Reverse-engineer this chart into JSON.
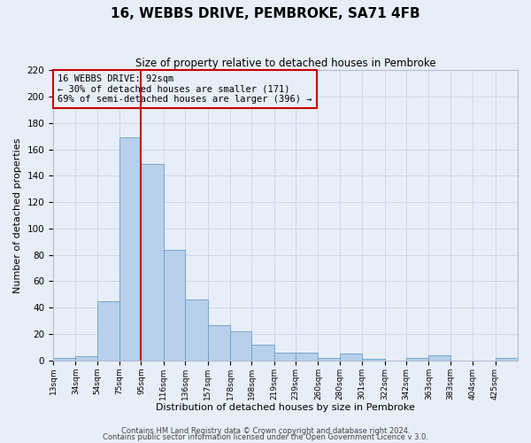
{
  "title": "16, WEBBS DRIVE, PEMBROKE, SA71 4FB",
  "subtitle": "Size of property relative to detached houses in Pembroke",
  "xlabel": "Distribution of detached houses by size in Pembroke",
  "ylabel": "Number of detached properties",
  "bin_labels": [
    "13sqm",
    "34sqm",
    "54sqm",
    "75sqm",
    "95sqm",
    "116sqm",
    "136sqm",
    "157sqm",
    "178sqm",
    "198sqm",
    "219sqm",
    "239sqm",
    "260sqm",
    "280sqm",
    "301sqm",
    "322sqm",
    "342sqm",
    "363sqm",
    "383sqm",
    "404sqm",
    "425sqm"
  ],
  "bin_edges": [
    13,
    34,
    54,
    75,
    95,
    116,
    136,
    157,
    178,
    198,
    219,
    239,
    260,
    280,
    301,
    322,
    342,
    363,
    383,
    404,
    425,
    446
  ],
  "bar_heights": [
    2,
    3,
    45,
    169,
    149,
    84,
    46,
    27,
    22,
    12,
    6,
    6,
    2,
    5,
    1,
    0,
    2,
    4,
    0,
    0,
    2
  ],
  "bar_color": "#b8d0ea",
  "bar_edgecolor": "#6a9fc8",
  "vline_x": 95,
  "vline_color": "#cc0000",
  "annotation_title": "16 WEBBS DRIVE: 92sqm",
  "annotation_line1": "← 30% of detached houses are smaller (171)",
  "annotation_line2": "69% of semi-detached houses are larger (396) →",
  "annotation_box_edgecolor": "#cc0000",
  "ylim": [
    0,
    220
  ],
  "yticks": [
    0,
    20,
    40,
    60,
    80,
    100,
    120,
    140,
    160,
    180,
    200,
    220
  ],
  "grid_color": "#ccd8ea",
  "background_color": "#e8eef8",
  "footnote1": "Contains HM Land Registry data © Crown copyright and database right 2024.",
  "footnote2": "Contains public sector information licensed under the Open Government Licence v 3.0."
}
